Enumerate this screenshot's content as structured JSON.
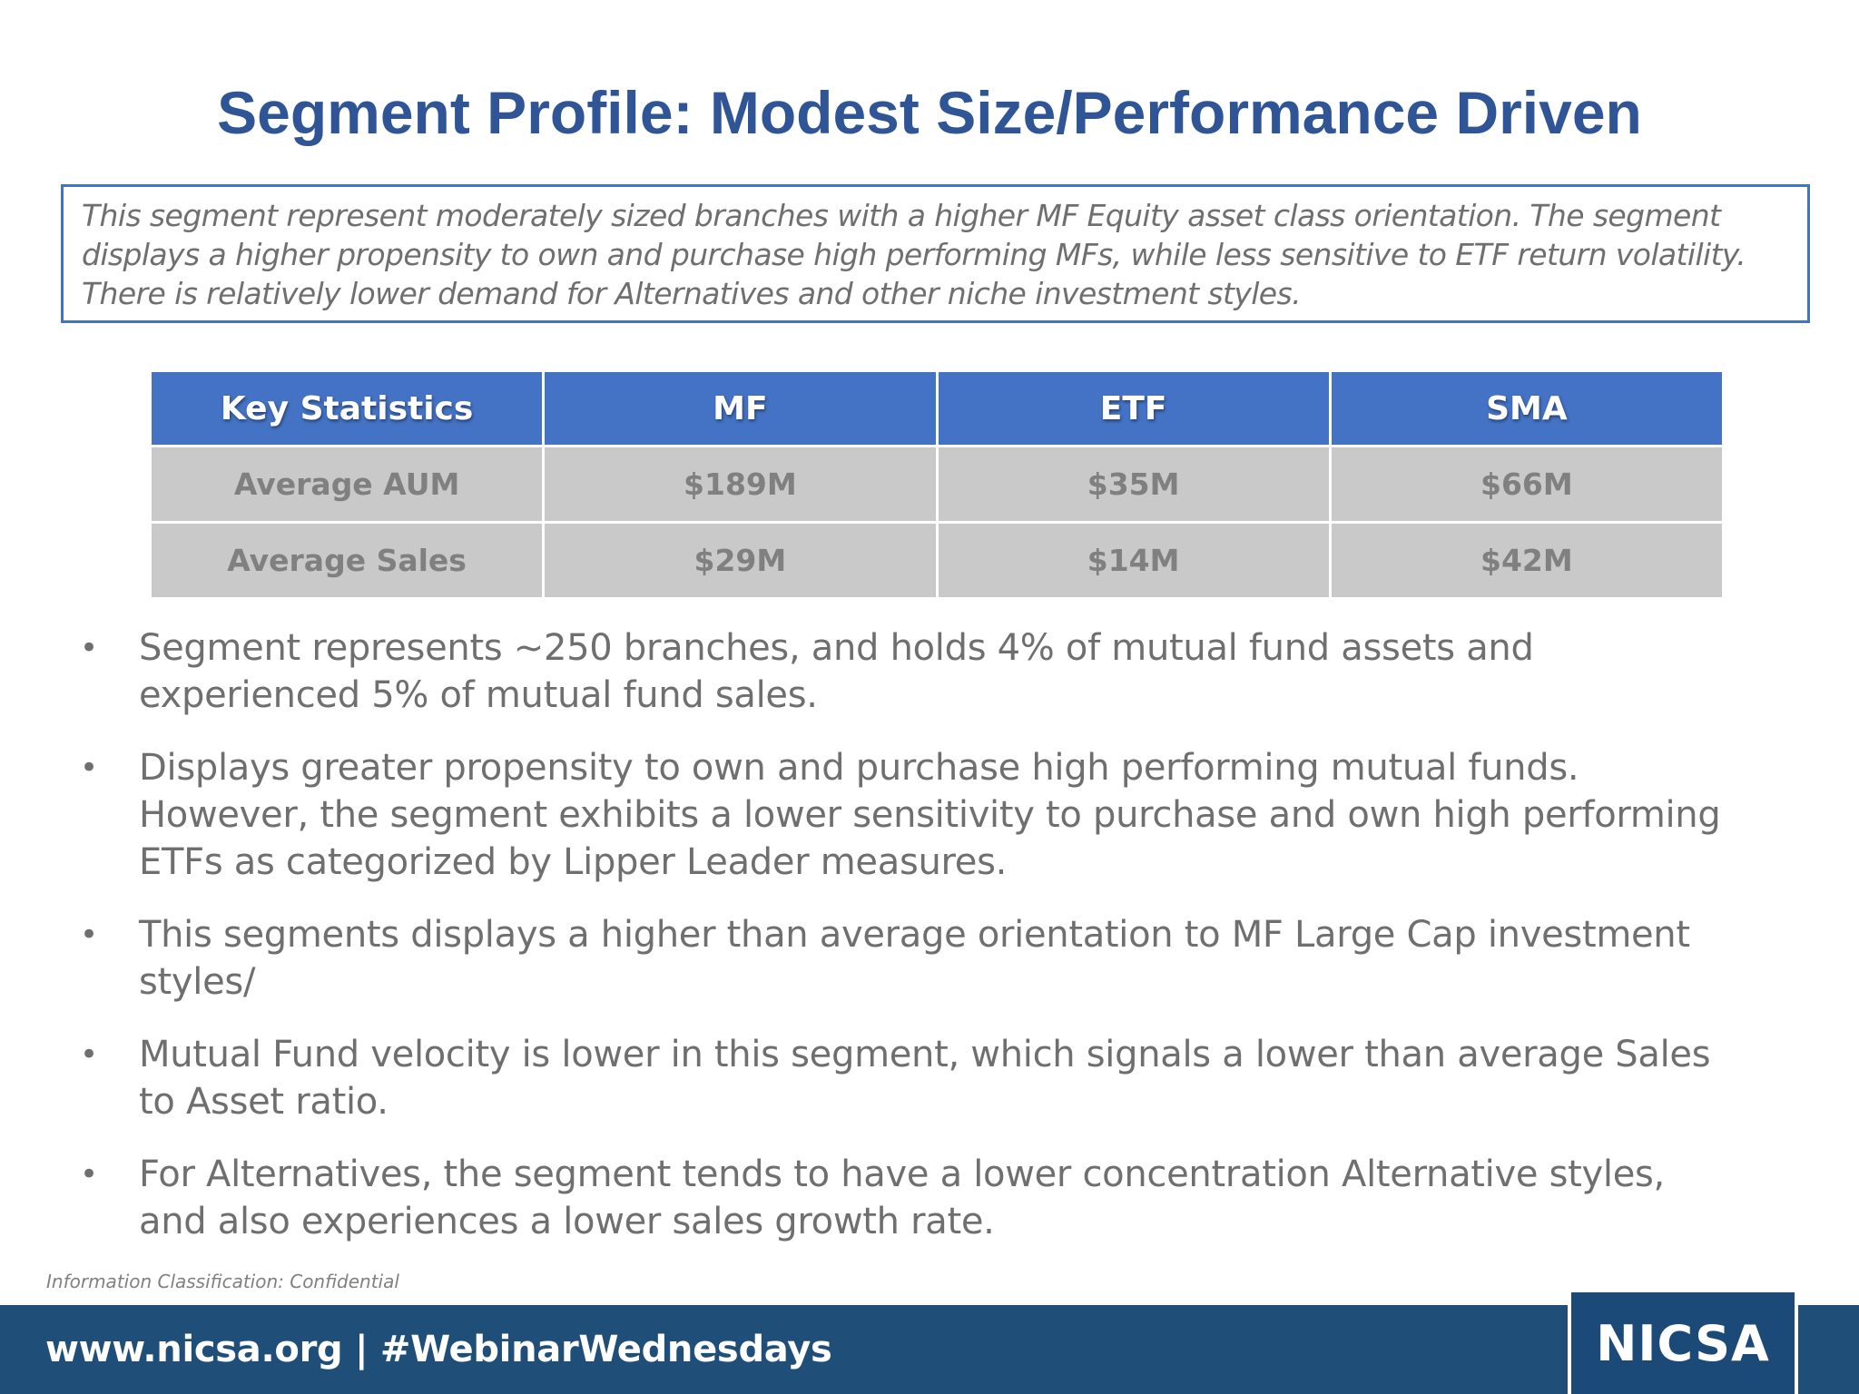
{
  "title": "Segment Profile:  Modest Size/Performance Driven",
  "summary": {
    "lines": [
      "This segment represent moderately sized branches with a higher MF Equity asset class orientation.  The segment",
      "displays a higher propensity  to own and purchase high performing MFs, while less sensitive to ETF return volatility.",
      "There is relatively lower demand for Alternatives and other niche investment styles."
    ]
  },
  "table": {
    "headers": [
      "Key Statistics",
      "MF",
      "ETF",
      "SMA"
    ],
    "rows": [
      [
        "Average AUM",
        "$189M",
        "$35M",
        "$66M"
      ],
      [
        "Average Sales",
        "$29M",
        "$14M",
        "$42M"
      ]
    ]
  },
  "bullets": [
    {
      "symbol": "•",
      "lines": [
        "Segment represents ~250 branches, and holds 4% of mutual fund assets and",
        "experienced 5% of mutual fund sales."
      ]
    },
    {
      "symbol": "•",
      "lines": [
        "Displays greater propensity to own and purchase high performing mutual funds.",
        "However, the segment exhibits a lower sensitivity to purchase and own high performing",
        "ETFs as categorized by Lipper Leader measures."
      ]
    },
    {
      "symbol": "•",
      "lines": [
        "This segments displays a higher than average orientation to MF Large Cap investment",
        "styles/"
      ]
    },
    {
      "symbol": "•",
      "lines": [
        "Mutual Fund velocity is lower in this segment, which signals a lower than average Sales",
        "to Asset ratio."
      ]
    },
    {
      "symbol": "•",
      "lines": [
        "For Alternatives, the segment tends to have a lower concentration Alternative styles,",
        "and also experiences a lower sales growth rate."
      ]
    }
  ],
  "classification": "Information Classification: Confidential",
  "footer": {
    "text": "www.nicsa.org  |  #WebinarWednesdays",
    "logo": "NICSA"
  },
  "colors": {
    "title": "#2f5597",
    "header_fill": "#4472c4",
    "cell_fill": "#c9c9c9",
    "footer_bar": "#1f4e79",
    "body_text": "#6f6f6f"
  }
}
